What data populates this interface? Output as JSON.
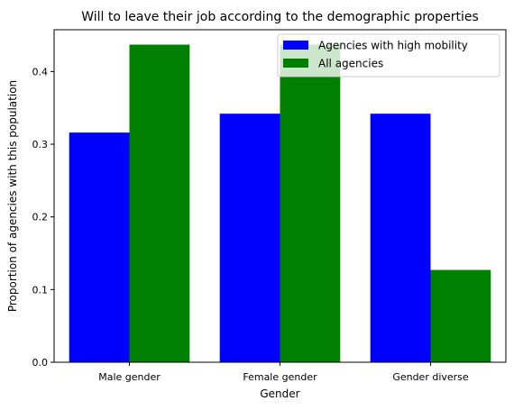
{
  "chart_data": {
    "type": "bar",
    "title": "Will to leave their job according to the demographic properties",
    "xlabel": "Gender",
    "ylabel": "Proportion of agencies with this population",
    "categories": [
      "Male gender",
      "Female gender",
      "Gender diverse"
    ],
    "series": [
      {
        "name": "Agencies with high mobility",
        "color": "#0000ff",
        "values": [
          0.316,
          0.342,
          0.342
        ]
      },
      {
        "name": "All agencies",
        "color": "#008000",
        "values": [
          0.437,
          0.437,
          0.127
        ]
      }
    ],
    "ylim": [
      0,
      0.4575
    ],
    "yticks": [
      0.0,
      0.1,
      0.2,
      0.3,
      0.4
    ],
    "ytick_labels": [
      "0.0",
      "0.1",
      "0.2",
      "0.3",
      "0.4"
    ],
    "grid": false,
    "legend_position": "top-right"
  }
}
